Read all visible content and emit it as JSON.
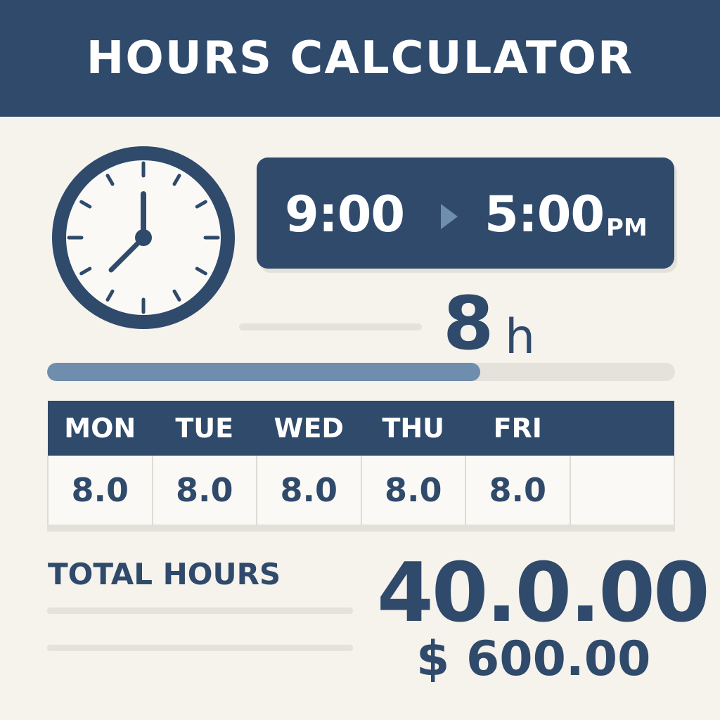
{
  "header": {
    "title": "HOURS CALCULATOR"
  },
  "clock": {
    "icon": "clock-icon",
    "hour": 7,
    "minute": 0
  },
  "time_range": {
    "start": "9:00",
    "arrow_icon": "play-arrow-icon",
    "end": "5:00",
    "end_suffix": "PM"
  },
  "daily_hours": {
    "value": "8",
    "unit": "h"
  },
  "progress": {
    "fraction": 0.69
  },
  "week": {
    "days": [
      "MON",
      "TUE",
      "WED",
      "THU",
      "FRI",
      ""
    ],
    "hours": [
      "8.0",
      "8.0",
      "8.0",
      "8.0",
      "8.0",
      ""
    ]
  },
  "summary": {
    "total_label": "TOTAL HOURS",
    "total_value": "40.0.00",
    "total_pay": "$ 600.00"
  },
  "colors": {
    "primary": "#2f4a6b",
    "background": "#f6f2ec",
    "progress": "#6f8dac",
    "track": "#e5e2dc"
  }
}
